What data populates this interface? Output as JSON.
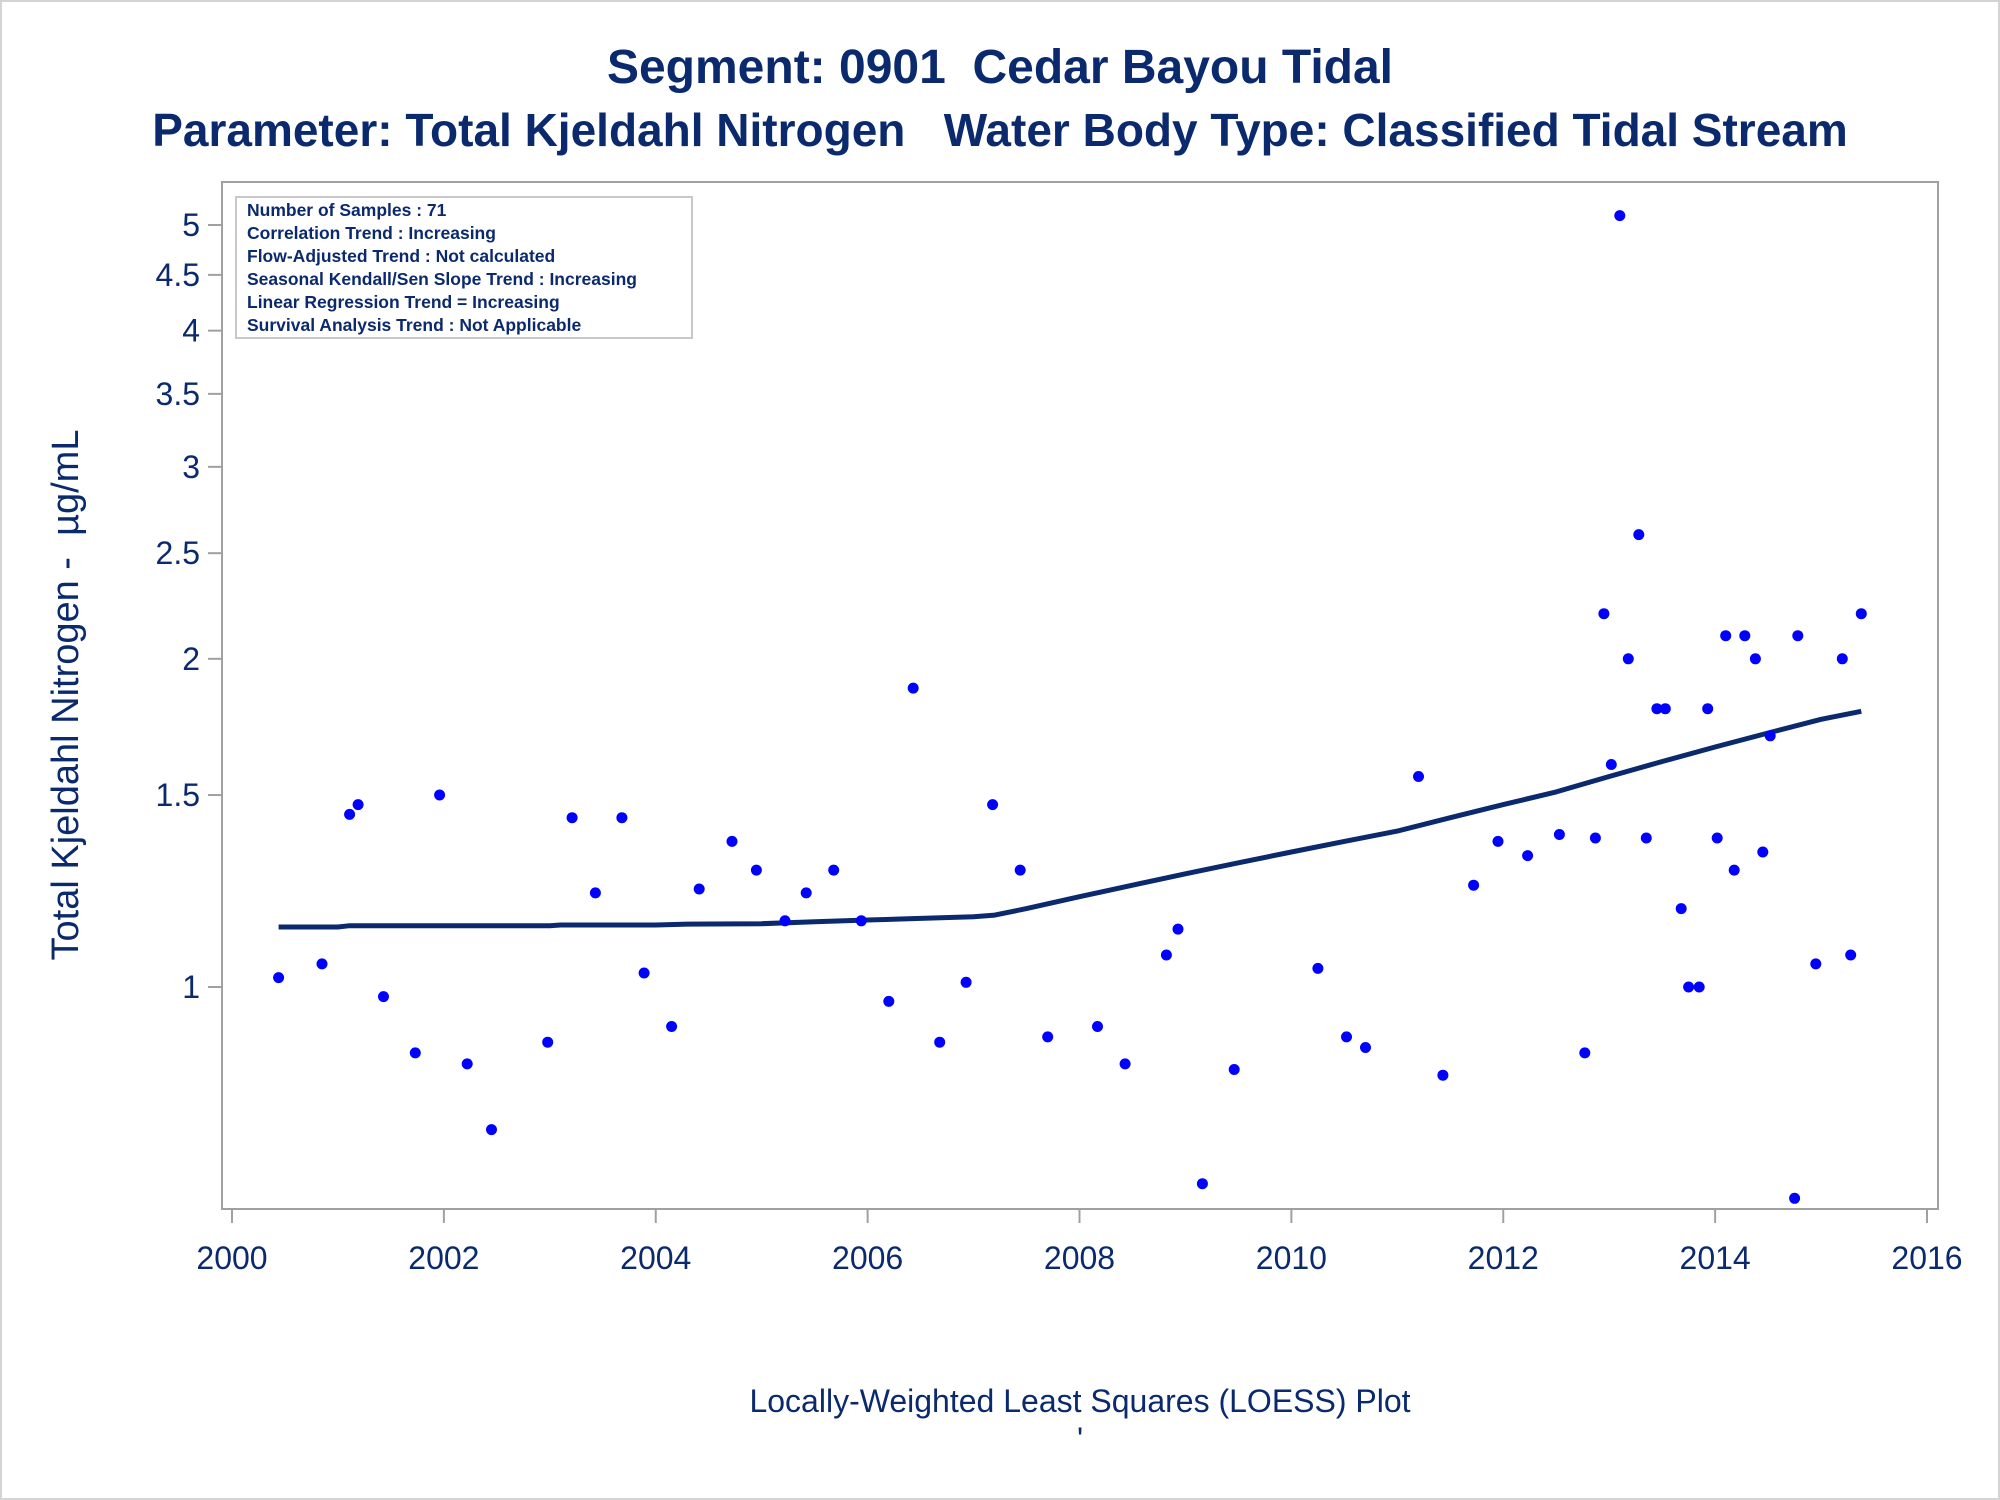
{
  "colors": {
    "text": "#0b2a6e",
    "points": "#0000ff",
    "loess_line": "#0b2a6e",
    "frame": "#a0a0a0"
  },
  "chart_data": {
    "type": "scatter",
    "title": "Segment: 0901  Cedar Bayou Tidal",
    "subtitle": "Parameter: Total Kjeldahl Nitrogen   Water Body Type: Classified Tidal Stream",
    "xlabel": "",
    "ylabel": "Total Kjeldahl Nitrogen -  µg/mL",
    "footnote": "Locally-Weighted Least Squares (LOESS) Plot",
    "footnote_mark": "'",
    "y_scale": "log",
    "xlim": [
      2000,
      2016
    ],
    "ylim": [
      0.63,
      5.3
    ],
    "x_ticks": [
      2000,
      2002,
      2004,
      2006,
      2008,
      2010,
      2012,
      2014,
      2016
    ],
    "y_ticks": [
      1,
      1.5,
      2,
      2.5,
      3,
      3.5,
      4,
      4.5,
      5
    ],
    "legend_position": "top-left",
    "legend_lines": [
      "Number of Samples : 71",
      "Correlation Trend : Increasing",
      "Flow-Adjusted Trend : Not calculated",
      "Seasonal Kendall/Sen Slope Trend : Increasing",
      "Linear Regression Trend = Increasing",
      "Survival Analysis Trend : Not Applicable"
    ],
    "series": [
      {
        "type": "scatter",
        "points": [
          [
            2000.44,
            1.02
          ],
          [
            2000.85,
            1.05
          ],
          [
            2001.11,
            1.44
          ],
          [
            2001.19,
            1.47
          ],
          [
            2001.43,
            0.98
          ],
          [
            2001.73,
            0.87
          ],
          [
            2001.96,
            1.5
          ],
          [
            2002.22,
            0.85
          ],
          [
            2002.45,
            0.74
          ],
          [
            2002.98,
            0.89
          ],
          [
            2003.21,
            1.43
          ],
          [
            2003.43,
            1.22
          ],
          [
            2003.68,
            1.43
          ],
          [
            2003.89,
            1.03
          ],
          [
            2004.15,
            0.92
          ],
          [
            2004.41,
            1.23
          ],
          [
            2004.72,
            1.36
          ],
          [
            2004.95,
            1.28
          ],
          [
            2005.22,
            1.15
          ],
          [
            2005.42,
            1.22
          ],
          [
            2005.68,
            1.28
          ],
          [
            2005.94,
            1.15
          ],
          [
            2006.2,
            0.97
          ],
          [
            2006.43,
            1.88
          ],
          [
            2006.68,
            0.89
          ],
          [
            2006.93,
            1.01
          ],
          [
            2007.18,
            1.47
          ],
          [
            2007.44,
            1.28
          ],
          [
            2007.7,
            0.9
          ],
          [
            2008.17,
            0.92
          ],
          [
            2008.43,
            0.85
          ],
          [
            2008.82,
            1.07
          ],
          [
            2008.93,
            1.13
          ],
          [
            2009.16,
            0.66
          ],
          [
            2009.46,
            0.84
          ],
          [
            2010.25,
            1.04
          ],
          [
            2010.52,
            0.9
          ],
          [
            2010.7,
            0.88
          ],
          [
            2011.2,
            1.56
          ],
          [
            2011.43,
            0.83
          ],
          [
            2011.72,
            1.24
          ],
          [
            2011.95,
            1.36
          ],
          [
            2012.23,
            1.32
          ],
          [
            2012.53,
            1.38
          ],
          [
            2012.77,
            0.87
          ],
          [
            2012.87,
            1.37
          ],
          [
            2012.95,
            2.2
          ],
          [
            2013.02,
            1.6
          ],
          [
            2013.1,
            5.1
          ],
          [
            2013.18,
            2.0
          ],
          [
            2013.28,
            2.6
          ],
          [
            2013.35,
            1.37
          ],
          [
            2013.45,
            1.8
          ],
          [
            2013.53,
            1.8
          ],
          [
            2013.68,
            1.18
          ],
          [
            2013.75,
            1.0
          ],
          [
            2013.85,
            1.0
          ],
          [
            2013.93,
            1.8
          ],
          [
            2014.02,
            1.37
          ],
          [
            2014.1,
            2.1
          ],
          [
            2014.18,
            1.28
          ],
          [
            2014.28,
            2.1
          ],
          [
            2014.38,
            2.0
          ],
          [
            2014.45,
            1.33
          ],
          [
            2014.52,
            1.7
          ],
          [
            2014.75,
            0.64
          ],
          [
            2014.78,
            2.1
          ],
          [
            2014.95,
            1.05
          ],
          [
            2015.2,
            2.0
          ],
          [
            2015.28,
            1.07
          ],
          [
            2015.38,
            2.2
          ]
        ]
      },
      {
        "type": "line",
        "points": [
          [
            2000.44,
            1.135
          ],
          [
            2001.0,
            1.135
          ],
          [
            2001.1,
            1.138
          ],
          [
            2002.0,
            1.138
          ],
          [
            2003.0,
            1.138
          ],
          [
            2003.1,
            1.14
          ],
          [
            2004.0,
            1.14
          ],
          [
            2004.3,
            1.142
          ],
          [
            2005.0,
            1.143
          ],
          [
            2005.5,
            1.148
          ],
          [
            2006.0,
            1.152
          ],
          [
            2006.5,
            1.156
          ],
          [
            2007.0,
            1.16
          ],
          [
            2007.2,
            1.164
          ],
          [
            2007.5,
            1.18
          ],
          [
            2008.0,
            1.21
          ],
          [
            2008.5,
            1.24
          ],
          [
            2009.0,
            1.27
          ],
          [
            2009.5,
            1.3
          ],
          [
            2010.0,
            1.33
          ],
          [
            2010.5,
            1.36
          ],
          [
            2011.0,
            1.39
          ],
          [
            2011.5,
            1.43
          ],
          [
            2012.0,
            1.47
          ],
          [
            2012.5,
            1.51
          ],
          [
            2013.0,
            1.56
          ],
          [
            2013.5,
            1.61
          ],
          [
            2014.0,
            1.66
          ],
          [
            2014.5,
            1.71
          ],
          [
            2015.0,
            1.76
          ],
          [
            2015.38,
            1.79
          ]
        ]
      }
    ]
  }
}
